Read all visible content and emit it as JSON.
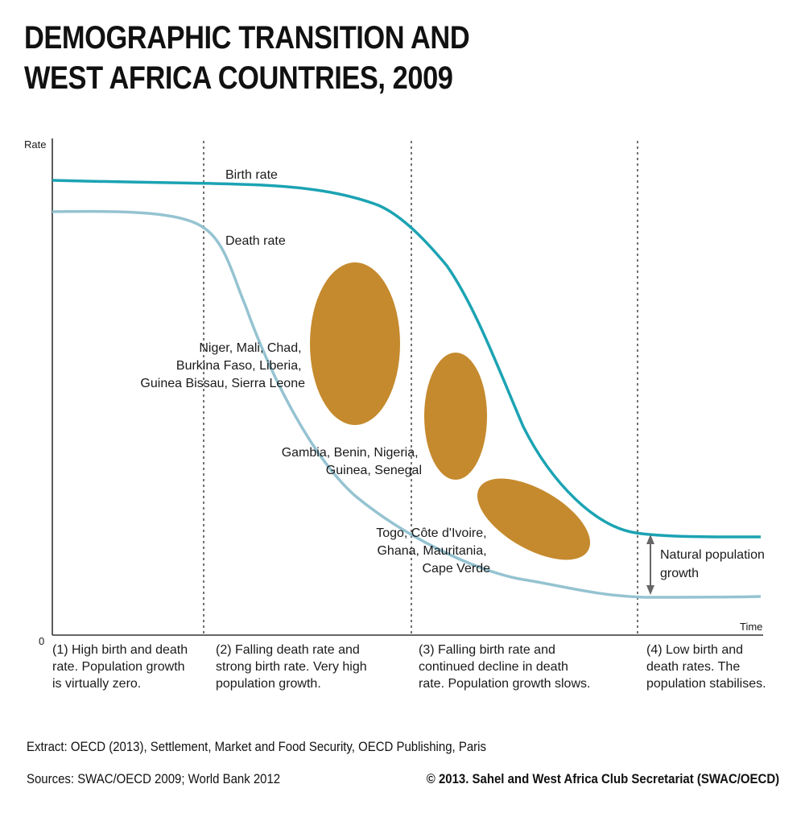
{
  "title": {
    "line1": "DEMOGRAPHIC TRANSITION AND",
    "line2": "WEST AFRICA COUNTRIES, 2009"
  },
  "axes": {
    "y_label": "Rate",
    "x_label": "Time",
    "origin_label": "0"
  },
  "curves": {
    "birth_rate_label": "Birth rate",
    "death_rate_label": "Death rate",
    "birth_color": "#1ba3b3",
    "death_color": "#95c3d1"
  },
  "groups": [
    {
      "lines": [
        "Niger, Mali, Chad,",
        "Burkina Faso, Liberia,",
        "Guinea Bissau, Sierra Leone"
      ]
    },
    {
      "lines": [
        "Gambia, Benin, Nigeria,",
        "Guinea, Senegal"
      ]
    },
    {
      "lines": [
        "Togo, Côte d'Ivoire,",
        "Ghana, Mauritania,",
        "Cape Verde"
      ]
    }
  ],
  "blob_color": "#c58a2e",
  "growth_label": {
    "line1": "Natural population",
    "line2": "growth"
  },
  "phases": [
    {
      "lines": [
        "(1) High birth and death",
        "rate. Population growth",
        "is virtually zero."
      ]
    },
    {
      "lines": [
        "(2) Falling death rate and",
        "strong birth rate. Very high",
        "population growth."
      ]
    },
    {
      "lines": [
        "(3) Falling birth rate and",
        "continued decline in death",
        "rate. Population growth slows."
      ]
    },
    {
      "lines": [
        "(4) Low birth and",
        "death rates. The",
        "population stabilises."
      ]
    }
  ],
  "footer": {
    "extract": "Extract: OECD (2013), Settlement, Market and Food Security, OECD Publishing, Paris",
    "sources": "Sources: SWAC/OECD 2009; World Bank 2012",
    "copyright": "© 2013. Sahel and West Africa Club Secretariat (SWAC/OECD)"
  }
}
